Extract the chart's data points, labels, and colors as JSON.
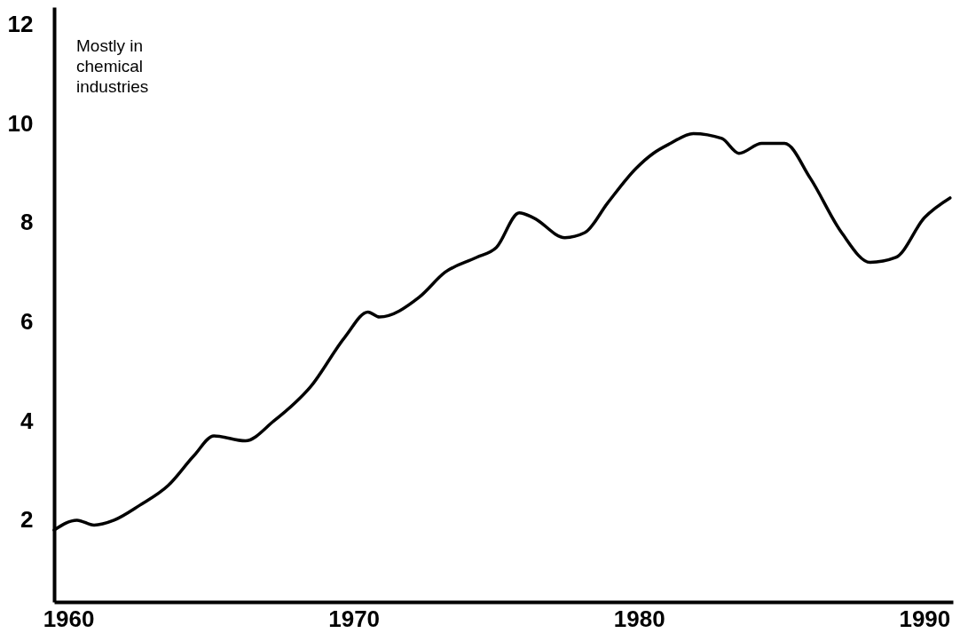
{
  "chart_data": {
    "type": "line",
    "annotations": [
      "Mostly in\nchemical\nindustries"
    ],
    "x": [
      1959.5,
      1960.3,
      1960.9,
      1961.6,
      1962.5,
      1963.5,
      1964.4,
      1965.1,
      1966.2,
      1967.2,
      1968.5,
      1969.7,
      1970.5,
      1970.9,
      1972.3,
      1973.2,
      1974.3,
      1975.0,
      1975.8,
      1976.3,
      1977.4,
      1978.1,
      1978.9,
      1979.9,
      1980.5,
      1981.1,
      1981.9,
      1982.9,
      1983.5,
      1984.3,
      1985.1,
      1986.0,
      1987.1,
      1988.1,
      1989.0,
      1990.0,
      1990.9
    ],
    "series": [
      {
        "color": "#000000",
        "values": [
          1.8,
          2.0,
          1.9,
          2.0,
          2.3,
          2.7,
          3.3,
          3.7,
          3.6,
          4.0,
          4.7,
          5.7,
          6.2,
          6.1,
          6.5,
          7.0,
          7.3,
          7.5,
          8.2,
          8.1,
          7.7,
          7.8,
          8.4,
          9.1,
          9.4,
          9.6,
          9.8,
          9.7,
          9.4,
          9.6,
          9.6,
          8.9,
          7.8,
          7.2,
          7.3,
          8.1,
          8.5
        ]
      }
    ],
    "xlim": [
      1959.5,
      1991
    ],
    "ylim": [
      0.35,
      12.35
    ],
    "xticks": [
      1960,
      1970,
      1980,
      1990
    ],
    "yticks": [
      2,
      4,
      6,
      8,
      10,
      12
    ],
    "grid": false,
    "marker": "none",
    "line_style": "solid"
  }
}
